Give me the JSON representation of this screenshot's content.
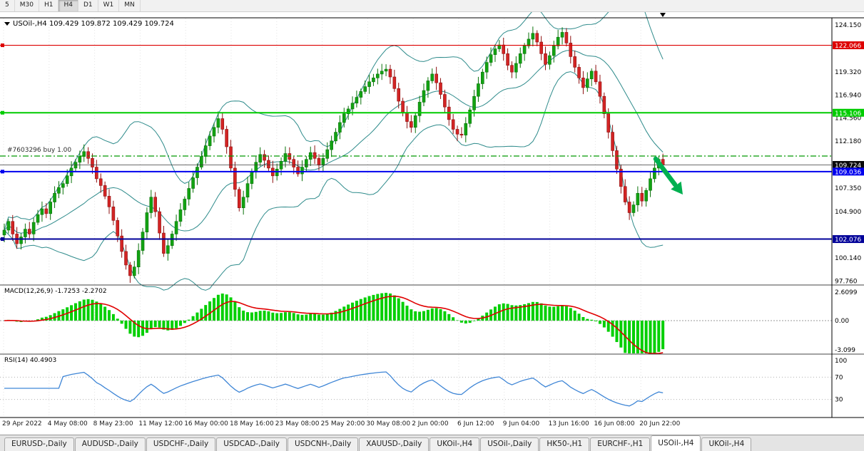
{
  "timeframe_toolbar": {
    "buttons": [
      "5",
      "M30",
      "H1",
      "H4",
      "D1",
      "W1",
      "MN"
    ],
    "active": "H4"
  },
  "chart_data": {
    "type": "candlestick",
    "title": "USOil-,H4 109.429 109.872 109.429 109.724",
    "symbol": "USOil-",
    "timeframe": "H4",
    "current_ohlc": {
      "open": 109.429,
      "high": 109.872,
      "low": 109.429,
      "close": 109.724
    },
    "y_range": [
      97.34,
      124.9
    ],
    "y_ticks": [
      {
        "label": "124.150",
        "value": 124.15
      },
      {
        "label": "119.320",
        "value": 119.32
      },
      {
        "label": "116.940",
        "value": 116.94
      },
      {
        "label": "114.560",
        "value": 114.56
      },
      {
        "label": "112.180",
        "value": 112.18
      },
      {
        "label": "107.350",
        "value": 107.35
      },
      {
        "label": "104.900",
        "value": 104.9
      },
      {
        "label": "100.140",
        "value": 100.14
      },
      {
        "label": "97.760",
        "value": 97.76
      }
    ],
    "x_labels": [
      "29 Apr 2022",
      "4 May 08:00",
      "8 May 23:00",
      "11 May 12:00",
      "16 May 00:00",
      "18 May 16:00",
      "23 May 08:00",
      "25 May 20:00",
      "30 May 08:00",
      "2 Jun 00:00",
      "6 Jun 12:00",
      "9 Jun 04:00",
      "13 Jun 16:00",
      "16 Jun 08:00",
      "20 Jun 22:00"
    ],
    "closes": [
      103.0,
      103.9,
      102.6,
      101.6,
      102.3,
      103.1,
      102.6,
      103.8,
      104.6,
      105.2,
      104.7,
      105.9,
      106.8,
      107.4,
      107.8,
      108.6,
      109.4,
      110.0,
      110.6,
      111.1,
      110.4,
      109.5,
      108.3,
      107.6,
      106.5,
      105.4,
      104.0,
      102.4,
      100.8,
      99.4,
      98.3,
      99.2,
      100.9,
      102.8,
      104.8,
      106.4,
      104.9,
      102.7,
      100.6,
      101.4,
      102.6,
      103.9,
      105.1,
      106.2,
      107.3,
      108.4,
      109.5,
      110.6,
      111.7,
      112.7,
      113.6,
      114.5,
      113.4,
      111.6,
      109.4,
      107.2,
      105.3,
      106.4,
      107.8,
      109.0,
      110.0,
      110.8,
      110.2,
      109.4,
      108.6,
      109.3,
      110.1,
      110.9,
      110.3,
      109.5,
      108.8,
      109.5,
      110.3,
      111.0,
      110.4,
      109.7,
      110.4,
      111.3,
      112.2,
      113.1,
      114.1,
      115.0,
      115.5,
      116.1,
      116.7,
      117.3,
      117.8,
      118.3,
      118.7,
      119.1,
      119.4,
      119.6,
      118.8,
      117.6,
      116.3,
      115.1,
      114.2,
      113.6,
      114.8,
      116.2,
      117.4,
      118.4,
      119.1,
      118.2,
      117.0,
      115.7,
      114.4,
      113.4,
      112.9,
      112.8,
      114.0,
      115.4,
      116.8,
      118.1,
      119.3,
      120.3,
      121.1,
      121.7,
      122.1,
      121.2,
      120.0,
      119.3,
      120.2,
      121.2,
      122.0,
      122.7,
      123.3,
      122.4,
      121.2,
      120.1,
      121.0,
      122.0,
      122.9,
      123.4,
      122.3,
      120.9,
      119.8,
      118.7,
      117.7,
      118.6,
      119.4,
      118.3,
      116.8,
      115.0,
      113.1,
      111.2,
      109.3,
      107.5,
      105.9,
      104.8,
      105.6,
      106.8,
      106.0,
      107.1,
      108.3,
      109.4,
      110.3,
      109.724
    ],
    "horizontal_lines": [
      {
        "label": "122.066",
        "price": 122.066,
        "color": "#dd0000",
        "width": 1.2
      },
      {
        "label": "115.106",
        "price": 115.106,
        "color": "#00cc00",
        "width": 2
      },
      {
        "label": "109.036",
        "price": 109.036,
        "color": "#0000ee",
        "width": 2
      },
      {
        "label": "102.076",
        "price": 102.076,
        "color": "#000099",
        "width": 2
      }
    ],
    "current_price": {
      "label": "109.724",
      "value": 109.724,
      "badge_bg": "#0a0a0a"
    },
    "order_line": {
      "label": "#7603296 buy 1.00",
      "price": 110.64,
      "color": "#009900"
    },
    "indicators": {
      "bollinger": {
        "period": 20,
        "deviation": 2
      },
      "macd": {
        "label": "MACD(12,26,9) -1.7253 -2.2702",
        "fast": 12,
        "slow": 26,
        "signal": 9,
        "value": -1.7253,
        "signal_value": -2.2702,
        "axis": [
          {
            "label": "2.6099",
            "value": 2.6099
          },
          {
            "label": "0.00",
            "value": 0
          },
          {
            "label": "-3.099",
            "value": -3.099
          }
        ]
      },
      "rsi": {
        "label": "RSI(14) 40.4903",
        "period": 14,
        "value": 40.4903,
        "axis": [
          {
            "label": "100",
            "value": 100
          },
          {
            "label": "70",
            "value": 70
          },
          {
            "label": "30",
            "value": 30
          }
        ],
        "levels": [
          70,
          30
        ]
      }
    }
  },
  "tabs": {
    "items": [
      "EURUSD-,Daily",
      "AUDUSD-,Daily",
      "USDCHF-,Daily",
      "USDCAD-,Daily",
      "USDCNH-,Daily",
      "XAUUSD-,Daily",
      "UKOil-,H4",
      "USOil-,Daily",
      "HK50-,H1",
      "EURCHF-,H1",
      "USOil-,H4",
      "UKOil-,H4"
    ],
    "active_index": 10
  },
  "colors": {
    "up_fill": "#12a312",
    "up_stroke": "#0a720a",
    "down_fill": "#d32424",
    "down_stroke": "#8e1111",
    "bollinger": "#2e8b8b",
    "macd_hist": "#00cf00",
    "macd_signal": "#e00000",
    "rsi_line": "#3f86d6",
    "arrow": "#00b050",
    "grid": "#e3e3e3",
    "separator": "#444444"
  }
}
